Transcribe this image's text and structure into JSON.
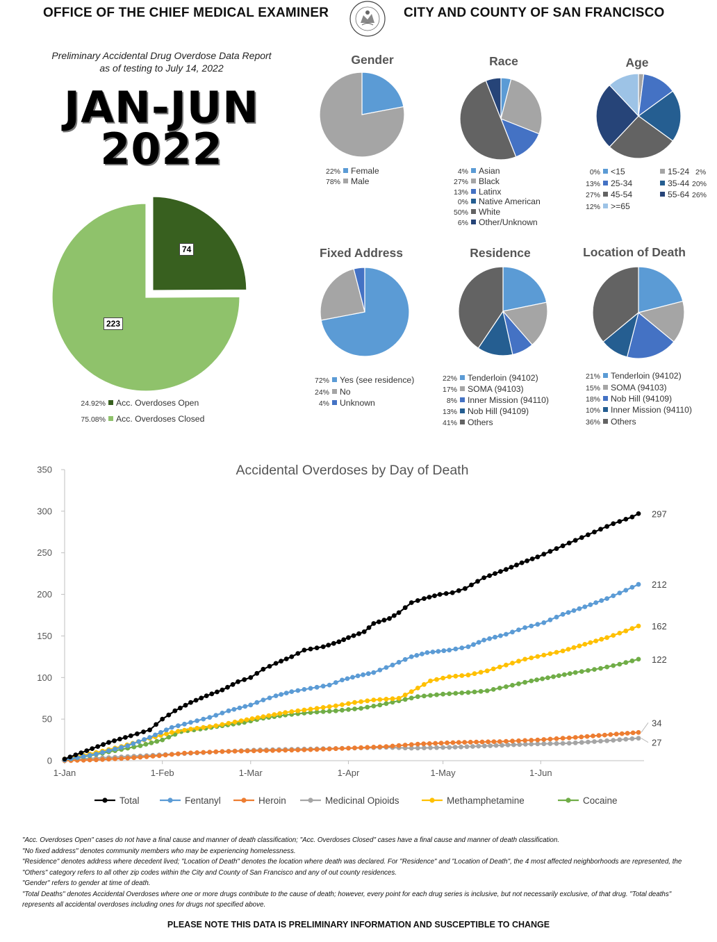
{
  "header": {
    "left": "OFFICE OF THE CHIEF MEDICAL EXAMINER",
    "right": "CITY AND COUNTY OF SAN FRANCISCO",
    "seal_text": "SEAL OF THE CITY AND COUNTY OF SAN FRANCISCO"
  },
  "report": {
    "subtitle_line1": "Preliminary Accidental Drug Overdose Data Report",
    "subtitle_line2": "as of testing to July 14, 2022",
    "period_line1": "JAN-JUN",
    "period_line2": "2022"
  },
  "colors": {
    "open_green": "#38601f",
    "closed_green": "#8fc26b",
    "blue": "#5b9bd5",
    "gray": "#a5a5a5",
    "mid_blue": "#4472c4",
    "dark_gray": "#636363",
    "navy": "#264478",
    "steel": "#255e91",
    "light_blue": "#9dc3e6",
    "total": "#000000",
    "fentanyl": "#5b9bd5",
    "heroin": "#ed7d31",
    "medicinal": "#a5a5a5",
    "meth": "#ffc000",
    "cocaine": "#70ad47"
  },
  "chart_data": [
    {
      "id": "overdose_status",
      "type": "pie",
      "title": "",
      "labels": [
        "Acc. Overdoses Open",
        "Acc. Overdoses Closed"
      ],
      "values": [
        74,
        223
      ],
      "percents": [
        "24.92%",
        "75.08%"
      ]
    },
    {
      "id": "gender",
      "type": "pie",
      "title": "Gender",
      "labels": [
        "Female",
        "Male"
      ],
      "values": [
        22,
        78
      ],
      "percents": [
        "22%",
        "78%"
      ]
    },
    {
      "id": "race",
      "type": "pie",
      "title": "Race",
      "labels": [
        "Asian",
        "Black",
        "Latinx",
        "Native American",
        "White",
        "Other/Unknown"
      ],
      "values": [
        4,
        27,
        13,
        0,
        50,
        6
      ],
      "percents": [
        "4%",
        "27%",
        "13%",
        "0%",
        "50%",
        "6%"
      ]
    },
    {
      "id": "age",
      "type": "pie",
      "title": "Age",
      "labels": [
        "<15",
        "15-24",
        "25-34",
        "35-44",
        "45-54",
        "55-64",
        ">=65"
      ],
      "values": [
        0,
        2,
        13,
        20,
        27,
        26,
        12
      ],
      "percents": [
        "0%",
        "2%",
        "13%",
        "20%",
        "27%",
        "26%",
        "12%"
      ]
    },
    {
      "id": "fixed_address",
      "type": "pie",
      "title": "Fixed Address",
      "labels": [
        "Yes (see residence)",
        "No",
        "Unknown"
      ],
      "values": [
        72,
        24,
        4
      ],
      "percents": [
        "72%",
        "24%",
        "4%"
      ]
    },
    {
      "id": "residence",
      "type": "pie",
      "title": "Residence",
      "labels": [
        "Tenderloin (94102)",
        "SOMA (94103)",
        "Inner Mission (94110)",
        "Nob Hill (94109)",
        "Others"
      ],
      "values": [
        22,
        17,
        8,
        13,
        41
      ],
      "percents": [
        "22%",
        "17%",
        "8%",
        "13%",
        "41%"
      ]
    },
    {
      "id": "location_of_death",
      "type": "pie",
      "title": "Location of Death",
      "labels": [
        "Tenderloin (94102)",
        "SOMA (94103)",
        "Nob Hill (94109)",
        "Inner Mission (94110)",
        "Others"
      ],
      "values": [
        21,
        15,
        18,
        10,
        36
      ],
      "percents": [
        "21%",
        "15%",
        "18%",
        "10%",
        "36%"
      ]
    },
    {
      "id": "by_day",
      "type": "line",
      "title": "Accidental Overdoses by Day of Death",
      "xlabel": "",
      "ylabel": "",
      "x_ticks": [
        "1-Jan",
        "1-Feb",
        "1-Mar",
        "1-Apr",
        "1-May",
        "1-Jun"
      ],
      "x_tick_days": [
        0,
        31,
        59,
        90,
        120,
        151
      ],
      "ylim": [
        0,
        350
      ],
      "y_ticks": [
        0,
        50,
        100,
        150,
        200,
        250,
        300,
        350
      ],
      "grid": false,
      "legend": "bottom",
      "series": [
        {
          "name": "Total",
          "color_key": "total",
          "final_label": "297",
          "points": [
            [
              0,
              2
            ],
            [
              7,
              12
            ],
            [
              14,
              22
            ],
            [
              21,
              30
            ],
            [
              27,
              37
            ],
            [
              31,
              50
            ],
            [
              35,
              60
            ],
            [
              40,
              70
            ],
            [
              45,
              78
            ],
            [
              50,
              85
            ],
            [
              55,
              95
            ],
            [
              59,
              100
            ],
            [
              63,
              110
            ],
            [
              67,
              117
            ],
            [
              72,
              125
            ],
            [
              76,
              133
            ],
            [
              82,
              137
            ],
            [
              87,
              143
            ],
            [
              90,
              148
            ],
            [
              95,
              155
            ],
            [
              98,
              165
            ],
            [
              103,
              171
            ],
            [
              106,
              178
            ],
            [
              110,
              190
            ],
            [
              114,
              195
            ],
            [
              119,
              200
            ],
            [
              123,
              202
            ],
            [
              127,
              207
            ],
            [
              133,
              220
            ],
            [
              140,
              230
            ],
            [
              145,
              238
            ],
            [
              150,
              245
            ],
            [
              156,
              255
            ],
            [
              162,
              265
            ],
            [
              168,
              275
            ],
            [
              174,
              285
            ],
            [
              180,
              293
            ],
            [
              182,
              297
            ]
          ]
        },
        {
          "name": "Fentanyl",
          "color_key": "fentanyl",
          "final_label": "212",
          "points": [
            [
              0,
              1
            ],
            [
              10,
              8
            ],
            [
              20,
              18
            ],
            [
              27,
              28
            ],
            [
              34,
              40
            ],
            [
              40,
              46
            ],
            [
              46,
              52
            ],
            [
              52,
              60
            ],
            [
              59,
              67
            ],
            [
              63,
              73
            ],
            [
              67,
              78
            ],
            [
              72,
              83
            ],
            [
              78,
              87
            ],
            [
              84,
              91
            ],
            [
              88,
              97
            ],
            [
              93,
              102
            ],
            [
              98,
              106
            ],
            [
              104,
              115
            ],
            [
              110,
              125
            ],
            [
              115,
              130
            ],
            [
              122,
              133
            ],
            [
              128,
              137
            ],
            [
              133,
              145
            ],
            [
              140,
              152
            ],
            [
              146,
              160
            ],
            [
              152,
              166
            ],
            [
              158,
              176
            ],
            [
              165,
              185
            ],
            [
              172,
              195
            ],
            [
              178,
              205
            ],
            [
              182,
              212
            ]
          ]
        },
        {
          "name": "Heroin",
          "color_key": "heroin",
          "final_label": "34",
          "points": [
            [
              0,
              0
            ],
            [
              10,
              1
            ],
            [
              20,
              3
            ],
            [
              30,
              6
            ],
            [
              38,
              9
            ],
            [
              50,
              11
            ],
            [
              62,
              12
            ],
            [
              76,
              13
            ],
            [
              90,
              15
            ],
            [
              102,
              17
            ],
            [
              112,
              20
            ],
            [
              125,
              22
            ],
            [
              138,
              23
            ],
            [
              150,
              25
            ],
            [
              162,
              28
            ],
            [
              175,
              32
            ],
            [
              182,
              34
            ]
          ]
        },
        {
          "name": "Medicinal Opioids",
          "color_key": "medicinal",
          "final_label": "27",
          "points": [
            [
              0,
              1
            ],
            [
              10,
              3
            ],
            [
              20,
              5
            ],
            [
              30,
              7
            ],
            [
              40,
              9
            ],
            [
              50,
              11
            ],
            [
              62,
              13
            ],
            [
              76,
              14
            ],
            [
              90,
              15
            ],
            [
              102,
              16
            ],
            [
              110,
              15
            ],
            [
              122,
              16
            ],
            [
              135,
              18
            ],
            [
              148,
              20
            ],
            [
              160,
              21
            ],
            [
              172,
              24
            ],
            [
              182,
              27
            ]
          ]
        },
        {
          "name": "Methamphetamine",
          "color_key": "meth",
          "final_label": "162",
          "points": [
            [
              0,
              2
            ],
            [
              8,
              8
            ],
            [
              18,
              17
            ],
            [
              27,
              27
            ],
            [
              34,
              34
            ],
            [
              40,
              38
            ],
            [
              48,
              42
            ],
            [
              56,
              48
            ],
            [
              63,
              53
            ],
            [
              70,
              58
            ],
            [
              78,
              62
            ],
            [
              86,
              66
            ],
            [
              92,
              70
            ],
            [
              98,
              73
            ],
            [
              106,
              75
            ],
            [
              110,
              83
            ],
            [
              116,
              96
            ],
            [
              122,
              101
            ],
            [
              128,
              103
            ],
            [
              134,
              108
            ],
            [
              140,
              115
            ],
            [
              146,
              122
            ],
            [
              152,
              127
            ],
            [
              158,
              132
            ],
            [
              165,
              140
            ],
            [
              172,
              148
            ],
            [
              178,
              156
            ],
            [
              182,
              162
            ]
          ]
        },
        {
          "name": "Cocaine",
          "color_key": "cocaine",
          "final_label": "122",
          "points": [
            [
              0,
              1
            ],
            [
              8,
              6
            ],
            [
              16,
              12
            ],
            [
              24,
              18
            ],
            [
              31,
              25
            ],
            [
              37,
              35
            ],
            [
              43,
              38
            ],
            [
              50,
              42
            ],
            [
              57,
              46
            ],
            [
              63,
              51
            ],
            [
              70,
              55
            ],
            [
              78,
              58
            ],
            [
              86,
              60
            ],
            [
              94,
              63
            ],
            [
              100,
              67
            ],
            [
              106,
              72
            ],
            [
              112,
              77
            ],
            [
              120,
              80
            ],
            [
              128,
              82
            ],
            [
              134,
              84
            ],
            [
              140,
              89
            ],
            [
              148,
              96
            ],
            [
              155,
              101
            ],
            [
              162,
              106
            ],
            [
              170,
              111
            ],
            [
              176,
              116
            ],
            [
              182,
              122
            ]
          ]
        }
      ]
    }
  ],
  "pie_labels": {
    "open": "74",
    "closed": "223"
  },
  "notes": [
    "\"Acc. Overdoses Open\" cases do not have a final cause and manner of death classification; \"Acc. Overdoses Closed\" cases have a final cause and manner of death classification.",
    "\"No fixed address\" denotes community members who may be experiencing homelessness.",
    "\"Residence\" denotes address where decedent lived; \"Location of Death\" denotes the location where death was declared. For \"Residence\" and \"Location of Death\", the 4 most affected neighborhoods are represented, the \"Others\" category refers to all other zip codes within the City and County of San Francisco and any of out county residences.",
    "\"Gender\" refers to gender at time of death.",
    "\"Total Deaths\" denotes Accidental Overdoses where one or more drugs contribute to the cause of death; however, every point for each drug series is inclusive, but not necessarily exclusive, of that drug. \"Total deaths\" represents all accidental overdoses including ones for drugs not specified above."
  ],
  "footer": "PLEASE NOTE THIS DATA IS PRELIMINARY INFORMATION AND SUSCEPTIBLE TO CHANGE"
}
